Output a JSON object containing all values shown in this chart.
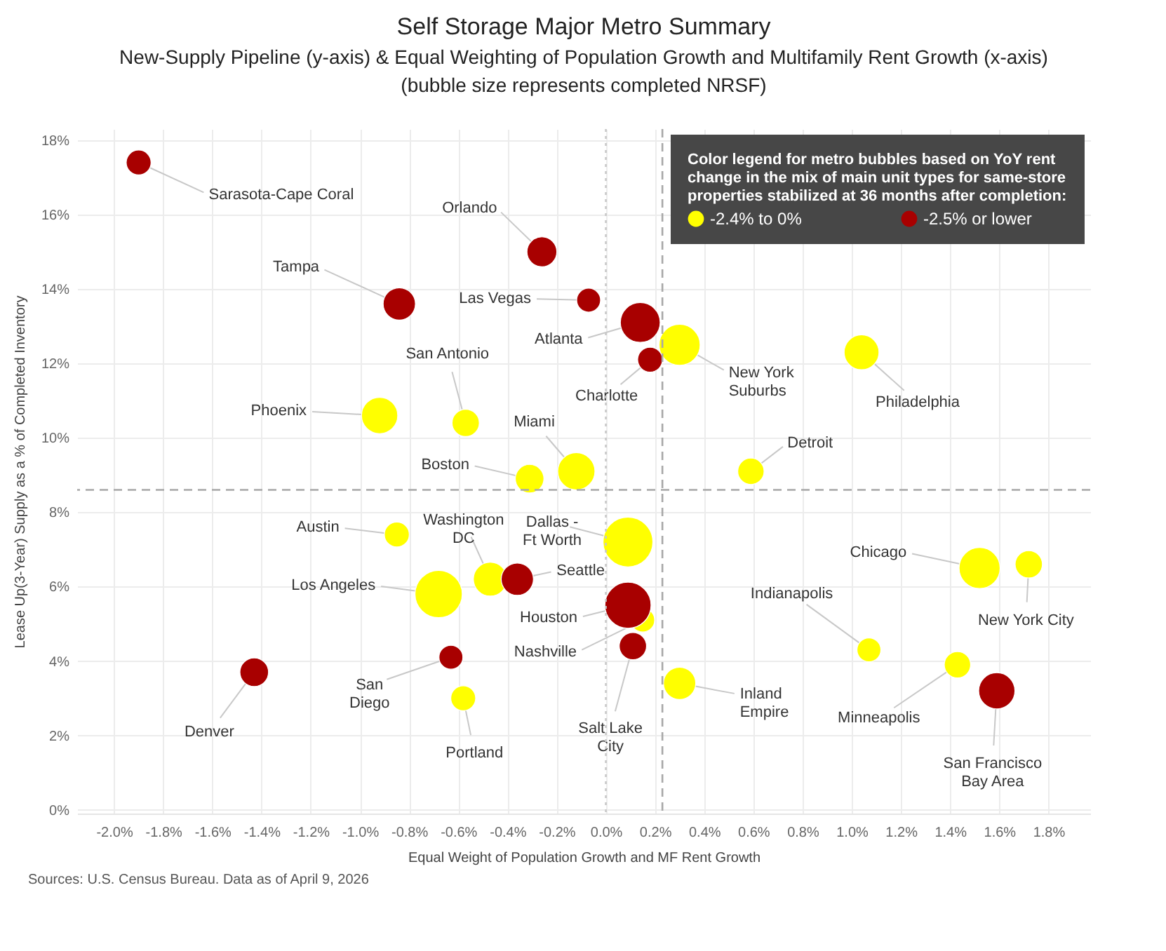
{
  "chart_data": {
    "type": "bubble",
    "title": "Self Storage Major Metro Summary",
    "subtitle": "New-Supply Pipeline (y-axis) & Equal Weighting of Population Growth and Multifamily Rent Growth (x-axis)\n(bubble size represents completed NRSF)",
    "xlabel": "Equal Weight of Population Growth and MF Rent Growth",
    "ylabel": "Lease Up(3-Year) Supply as a % of Completed Inventory",
    "legend_title": "Color legend for metro bubbles based on YoY rent change in the mix of main unit types for same-store properties stabilized at 36 months after completion:",
    "legend": "top right",
    "grid": true,
    "xlim": [
      -2.15,
      1.97
    ],
    "ylim": [
      -0.1,
      18.3
    ],
    "xticks": [
      {
        "value": -2.0,
        "label": "-2.0%"
      },
      {
        "value": -1.8,
        "label": "-1.8%"
      },
      {
        "value": -1.6,
        "label": "-1.6%"
      },
      {
        "value": -1.4,
        "label": "-1.4%"
      },
      {
        "value": -1.2,
        "label": "-1.2%"
      },
      {
        "value": -1.0,
        "label": "-1.0%"
      },
      {
        "value": -0.8,
        "label": "-0.8%"
      },
      {
        "value": -0.6,
        "label": "-0.6%"
      },
      {
        "value": -0.4,
        "label": "-0.4%"
      },
      {
        "value": -0.2,
        "label": "-0.2%"
      },
      {
        "value": 0,
        "label": "0.0%"
      },
      {
        "value": 0.2,
        "label": "0.2%"
      },
      {
        "value": 0.4,
        "label": "0.4%"
      },
      {
        "value": 0.6,
        "label": "0.6%"
      },
      {
        "value": 0.8,
        "label": "0.8%"
      },
      {
        "value": 1.0,
        "label": "1.0%"
      },
      {
        "value": 1.2,
        "label": "1.2%"
      },
      {
        "value": 1.4,
        "label": "1.4%"
      },
      {
        "value": 1.6,
        "label": "1.6%"
      },
      {
        "value": 1.8,
        "label": "1.8%"
      }
    ],
    "yticks": [
      {
        "value": 0,
        "label": "0%"
      },
      {
        "value": 2,
        "label": "2%"
      },
      {
        "value": 4,
        "label": "4%"
      },
      {
        "value": 6,
        "label": "6%"
      },
      {
        "value": 8,
        "label": "8%"
      },
      {
        "value": 10,
        "label": "10%"
      },
      {
        "value": 12,
        "label": "12%"
      },
      {
        "value": 14,
        "label": "14%"
      },
      {
        "value": 16,
        "label": "16%"
      },
      {
        "value": 18,
        "label": "18%"
      }
    ],
    "series": [
      {
        "name": "-2.4% to 0%",
        "color": "#ffff00",
        "x": [
          0.3,
          1.04,
          0.59,
          -0.92,
          -0.57,
          -0.12,
          -0.31,
          0.09,
          -0.85,
          -0.47,
          -0.68,
          0.15,
          0.3,
          -0.58,
          1.52,
          1.72,
          1.07,
          1.43
        ],
        "values": [
          12.5,
          12.3,
          9.1,
          10.6,
          10.4,
          9.1,
          8.9,
          7.2,
          7.4,
          6.2,
          5.8,
          5.1,
          3.4,
          3.0,
          6.5,
          6.6,
          4.3,
          3.9
        ],
        "sizes": [
          0.68,
          0.49,
          0.28,
          0.53,
          0.3,
          0.56,
          0.33,
          1,
          0.25,
          0.46,
          0.9,
          0.23,
          0.42,
          0.25,
          0.68,
          0.3,
          0.23,
          0.28
        ]
      },
      {
        "name": "-2.5% or lower",
        "color": "#a80000",
        "x": [
          -1.9,
          -0.26,
          -0.84,
          -0.07,
          0.14,
          0.18,
          -0.36,
          0.09,
          0.11,
          -1.43,
          -0.63,
          1.59
        ],
        "values": [
          17.4,
          15.0,
          13.6,
          13.7,
          13.1,
          12.1,
          6.2,
          5.5,
          4.4,
          3.7,
          4.1,
          3.2
        ],
        "sizes": [
          0.25,
          0.36,
          0.42,
          0.23,
          0.64,
          0.25,
          0.42,
          0.86,
          0.3,
          0.33,
          0.23,
          0.53
        ]
      }
    ],
    "ref_lines": [
      {
        "axis": "x",
        "value": 0,
        "color": "#c8c8c8",
        "line_style": "dotted"
      },
      {
        "axis": "x",
        "value": 0.23,
        "color": "#a8a8a8",
        "line_style": "dashed"
      },
      {
        "axis": "y",
        "value": 8.6,
        "color": "#a8a8a8",
        "line_style": "dashed"
      }
    ],
    "annotations": [
      {
        "text": "Sarasota-Cape Coral",
        "x": -1.9,
        "y": 17.4
      },
      {
        "text": "Orlando",
        "x": -0.26,
        "y": 15.0
      },
      {
        "text": "Tampa",
        "x": -0.84,
        "y": 13.6
      },
      {
        "text": "Las Vegas",
        "x": -0.07,
        "y": 13.7
      },
      {
        "text": "Atlanta",
        "x": 0.14,
        "y": 13.1
      },
      {
        "text": "New York\nSuburbs",
        "x": 0.3,
        "y": 12.5
      },
      {
        "text": "Charlotte",
        "x": 0.18,
        "y": 12.1
      },
      {
        "text": "Philadelphia",
        "x": 1.04,
        "y": 12.3
      },
      {
        "text": "Detroit",
        "x": 0.59,
        "y": 9.1
      },
      {
        "text": "Phoenix",
        "x": -0.92,
        "y": 10.6
      },
      {
        "text": "San Antonio",
        "x": -0.57,
        "y": 10.4
      },
      {
        "text": "Miami",
        "x": -0.12,
        "y": 9.1
      },
      {
        "text": "Boston",
        "x": -0.31,
        "y": 8.9
      },
      {
        "text": "Dallas -\nFt Worth",
        "x": 0.09,
        "y": 7.2
      },
      {
        "text": "Austin",
        "x": -0.85,
        "y": 7.4
      },
      {
        "text": "Washington\nDC",
        "x": -0.47,
        "y": 6.2
      },
      {
        "text": "Seattle",
        "x": -0.36,
        "y": 6.2
      },
      {
        "text": "Los Angeles",
        "x": -0.68,
        "y": 5.8
      },
      {
        "text": "Houston",
        "x": 0.09,
        "y": 5.5
      },
      {
        "text": "Nashville",
        "x": 0.15,
        "y": 5.1
      },
      {
        "text": "Salt Lake\nCity",
        "x": 0.11,
        "y": 4.4
      },
      {
        "text": "Inland\nEmpire",
        "x": 0.3,
        "y": 3.4
      },
      {
        "text": "Denver",
        "x": -1.43,
        "y": 3.7
      },
      {
        "text": "San\nDiego",
        "x": -0.63,
        "y": 4.1
      },
      {
        "text": "Portland",
        "x": -0.58,
        "y": 3.0
      },
      {
        "text": "Chicago",
        "x": 1.52,
        "y": 6.5
      },
      {
        "text": "New York City",
        "x": 1.72,
        "y": 6.6
      },
      {
        "text": "Indianapolis",
        "x": 1.07,
        "y": 4.3
      },
      {
        "text": "Minneapolis",
        "x": 1.43,
        "y": 3.9
      },
      {
        "text": "San Francisco\nBay Area",
        "x": 1.59,
        "y": 3.2
      },
      "Sources: U.S. Census Bureau. Data as of April 9, 2026"
    ]
  }
}
